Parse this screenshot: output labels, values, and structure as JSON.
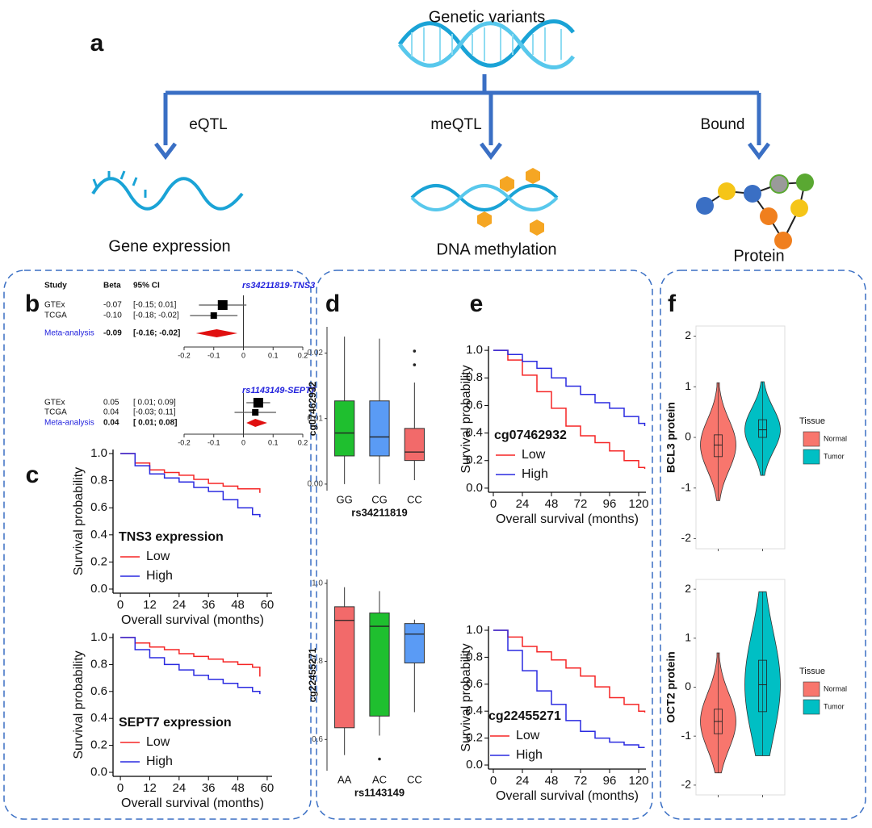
{
  "diagram": {
    "label": "a",
    "title": "Genetic variants",
    "edges": [
      "eQTL",
      "meQTL",
      "Bound"
    ],
    "nodes": [
      "Gene expression",
      "DNA methylation",
      "Protein"
    ]
  },
  "chart_data": [
    {
      "type": "forest",
      "panel": "b",
      "columns": [
        "Study",
        "Beta",
        "95% CI"
      ],
      "title": "rs34211819-TNS3",
      "categories": [
        "GTEx",
        "TCGA",
        "Meta-analysis"
      ],
      "values": [
        -0.07,
        -0.1,
        -0.09
      ],
      "value_labels": [
        "-0.07",
        "-0.10",
        "-0.09"
      ],
      "ci_low": [
        -0.15,
        -0.18,
        -0.16
      ],
      "ci_high": [
        0.01,
        -0.02,
        -0.02
      ],
      "ci_labels": [
        "[-0.15; 0.01]",
        "[-0.18; -0.02]",
        "[-0.16; -0.02]"
      ],
      "xlim": [
        -0.2,
        0.2
      ],
      "xticks": [
        -0.2,
        -0.1,
        0,
        0.1,
        0.2
      ]
    },
    {
      "type": "forest",
      "title": "rs1143149-SEPT7",
      "categories": [
        "GTEx",
        "TCGA",
        "Meta-analysis"
      ],
      "values": [
        0.05,
        0.04,
        0.04
      ],
      "value_labels": [
        "0.05",
        "0.04",
        "0.04"
      ],
      "ci_low": [
        0.01,
        -0.03,
        0.01
      ],
      "ci_high": [
        0.09,
        0.11,
        0.08
      ],
      "ci_labels": [
        "[ 0.01; 0.09]",
        "[-0.03; 0.11]",
        "[ 0.01; 0.08]"
      ],
      "xlim": [
        -0.2,
        0.2
      ],
      "xticks": [
        -0.2,
        -0.1,
        0,
        0.1,
        0.2
      ]
    },
    {
      "type": "line",
      "step": true,
      "panel": "c",
      "ylabel": "Survival probability",
      "xlabel": "Overall survival (months)",
      "legend_title": "TNS3 expression",
      "x": [
        0,
        6,
        12,
        18,
        24,
        30,
        36,
        42,
        48,
        54,
        57
      ],
      "series": [
        {
          "name": "Low",
          "color": "#f52525",
          "values": [
            1,
            0.93,
            0.88,
            0.86,
            0.84,
            0.81,
            0.78,
            0.76,
            0.74,
            0.74,
            0.71
          ]
        },
        {
          "name": "High",
          "color": "#2a2ae0",
          "values": [
            1,
            0.91,
            0.85,
            0.82,
            0.79,
            0.75,
            0.72,
            0.66,
            0.6,
            0.55,
            0.53
          ]
        }
      ],
      "xlim": [
        -3,
        62
      ],
      "xticks": [
        0,
        12,
        24,
        36,
        48,
        60
      ],
      "ylim": [
        -0.03,
        1.03
      ],
      "yticks": [
        {
          "value": 0,
          "label": "0.0"
        },
        0.2,
        0.4,
        0.6,
        0.8,
        {
          "value": 1,
          "label": "1.0"
        }
      ]
    },
    {
      "type": "line",
      "step": true,
      "ylabel": "Survival probability",
      "xlabel": "Overall survival (months)",
      "legend_title": "SEPT7 expression",
      "x": [
        0,
        6,
        12,
        18,
        24,
        30,
        36,
        42,
        48,
        54,
        57
      ],
      "series": [
        {
          "name": "Low",
          "color": "#f52525",
          "values": [
            1,
            0.96,
            0.93,
            0.91,
            0.88,
            0.86,
            0.84,
            0.82,
            0.8,
            0.78,
            0.71
          ]
        },
        {
          "name": "High",
          "color": "#2a2ae0",
          "values": [
            1,
            0.91,
            0.85,
            0.8,
            0.76,
            0.72,
            0.69,
            0.66,
            0.63,
            0.6,
            0.58
          ]
        }
      ],
      "xlim": [
        -3,
        62
      ],
      "xticks": [
        0,
        12,
        24,
        36,
        48,
        60
      ],
      "ylim": [
        -0.03,
        1.03
      ],
      "yticks": [
        {
          "value": 0,
          "label": "0.0"
        },
        0.2,
        0.4,
        0.6,
        0.8,
        {
          "value": 1,
          "label": "1.0"
        }
      ]
    },
    {
      "type": "box",
      "panel": "d",
      "ylabel": "cg07462932",
      "xlabel": "rs34211819",
      "categories": [
        "GG",
        "CG",
        "CC"
      ],
      "colors": [
        "#1fbf2f",
        "#5a9bf5",
        "#f26a6a"
      ],
      "min": [
        0,
        0,
        0.0006
      ],
      "q1": [
        0.0043,
        0.0043,
        0.0036
      ],
      "median": [
        0.0078,
        0.0072,
        0.0049
      ],
      "q3": [
        0.0127,
        0.0127,
        0.0085
      ],
      "max": [
        0.0225,
        0.0222,
        0.0155
      ],
      "outliers": [
        [],
        [],
        [
          0.0203,
          0.0182
        ]
      ],
      "ylim": [
        -0.001,
        0.024
      ],
      "yticks": [
        {
          "value": 0,
          "label": "0.00"
        },
        {
          "value": 0.01,
          "label": "0.01"
        },
        {
          "value": 0.02,
          "label": "0.02"
        }
      ]
    },
    {
      "type": "box",
      "ylabel": "cg22455271",
      "xlabel": "rs1143149",
      "categories": [
        "AA",
        "AC",
        "CC"
      ],
      "colors": [
        "#f26a6a",
        "#1fbf2f",
        "#5a9bf5"
      ],
      "min": [
        0.56,
        0.61,
        0.67
      ],
      "q1": [
        0.63,
        0.66,
        0.796
      ],
      "median": [
        0.905,
        0.89,
        0.87
      ],
      "q3": [
        0.94,
        0.924,
        0.897
      ],
      "max": [
        0.99,
        0.98,
        0.907
      ],
      "outliers": [
        [],
        [
          0.55
        ],
        []
      ],
      "ylim": [
        0.52,
        1.01
      ],
      "yticks": [
        0.6,
        0.8,
        {
          "value": 1,
          "label": "1.0"
        }
      ]
    },
    {
      "type": "line",
      "step": true,
      "panel": "e",
      "ylabel": "Survival probability",
      "xlabel": "Overall survival (months)",
      "legend_title": "cg07462932",
      "x": [
        0,
        12,
        24,
        36,
        48,
        60,
        72,
        84,
        96,
        108,
        120,
        125
      ],
      "series": [
        {
          "name": "Low",
          "color": "#f52525",
          "values": [
            1,
            0.93,
            0.82,
            0.7,
            0.58,
            0.45,
            0.38,
            0.33,
            0.27,
            0.2,
            0.15,
            0.14
          ]
        },
        {
          "name": "High",
          "color": "#2a2ae0",
          "values": [
            1,
            0.97,
            0.92,
            0.87,
            0.8,
            0.74,
            0.68,
            0.62,
            0.58,
            0.52,
            0.47,
            0.45
          ]
        }
      ],
      "xlim": [
        -4,
        126
      ],
      "xticks": [
        0,
        24,
        48,
        72,
        96,
        120
      ],
      "ylim": [
        -0.03,
        1.03
      ],
      "yticks": [
        {
          "value": 0,
          "label": "0.0"
        },
        0.2,
        0.4,
        0.6,
        0.8,
        {
          "value": 1,
          "label": "1.0"
        }
      ]
    },
    {
      "type": "line",
      "step": true,
      "ylabel": "Survival probability",
      "xlabel": "Overall survival (months)",
      "legend_title": "cg22455271",
      "x": [
        0,
        12,
        24,
        36,
        48,
        60,
        72,
        84,
        96,
        108,
        120,
        125
      ],
      "series": [
        {
          "name": "Low",
          "color": "#f52525",
          "values": [
            1,
            0.95,
            0.88,
            0.84,
            0.78,
            0.72,
            0.66,
            0.58,
            0.5,
            0.45,
            0.4,
            0.39
          ]
        },
        {
          "name": "High",
          "color": "#2a2ae0",
          "values": [
            1,
            0.85,
            0.7,
            0.55,
            0.45,
            0.33,
            0.25,
            0.2,
            0.17,
            0.15,
            0.13,
            0.13
          ]
        }
      ],
      "xlim": [
        -4,
        126
      ],
      "xticks": [
        0,
        24,
        48,
        72,
        96,
        120
      ],
      "ylim": [
        -0.03,
        1.03
      ],
      "yticks": [
        {
          "value": 0,
          "label": "0.0"
        },
        0.2,
        0.4,
        0.6,
        0.8,
        {
          "value": 1,
          "label": "1.0"
        }
      ]
    },
    {
      "type": "violin",
      "panel": "f",
      "ylabel": "BCL3 protein",
      "legend_title": "Tissue",
      "categories": [
        "Normal",
        "Tumor"
      ],
      "colors": [
        "#f8766d",
        "#00bfc4"
      ],
      "min": [
        -1.25,
        -0.75
      ],
      "q1": [
        -0.38,
        0
      ],
      "median": [
        -0.15,
        0.15
      ],
      "q3": [
        0.05,
        0.35
      ],
      "max": [
        1.08,
        1.1
      ],
      "ylim": [
        -2.2,
        2.2
      ],
      "yticks": [
        -2,
        -1,
        0,
        1,
        2
      ]
    },
    {
      "type": "violin",
      "ylabel": "OCT2 protein",
      "legend_title": "Tissue",
      "categories": [
        "Normal",
        "Tumor"
      ],
      "colors": [
        "#f8766d",
        "#00bfc4"
      ],
      "min": [
        -1.75,
        -1.4
      ],
      "q1": [
        -0.95,
        -0.5
      ],
      "median": [
        -0.7,
        0.05
      ],
      "q3": [
        -0.45,
        0.55
      ],
      "max": [
        0.7,
        1.95
      ],
      "ylim": [
        -2.2,
        2.2
      ],
      "yticks": [
        -2,
        -1,
        0,
        1,
        2
      ]
    }
  ]
}
